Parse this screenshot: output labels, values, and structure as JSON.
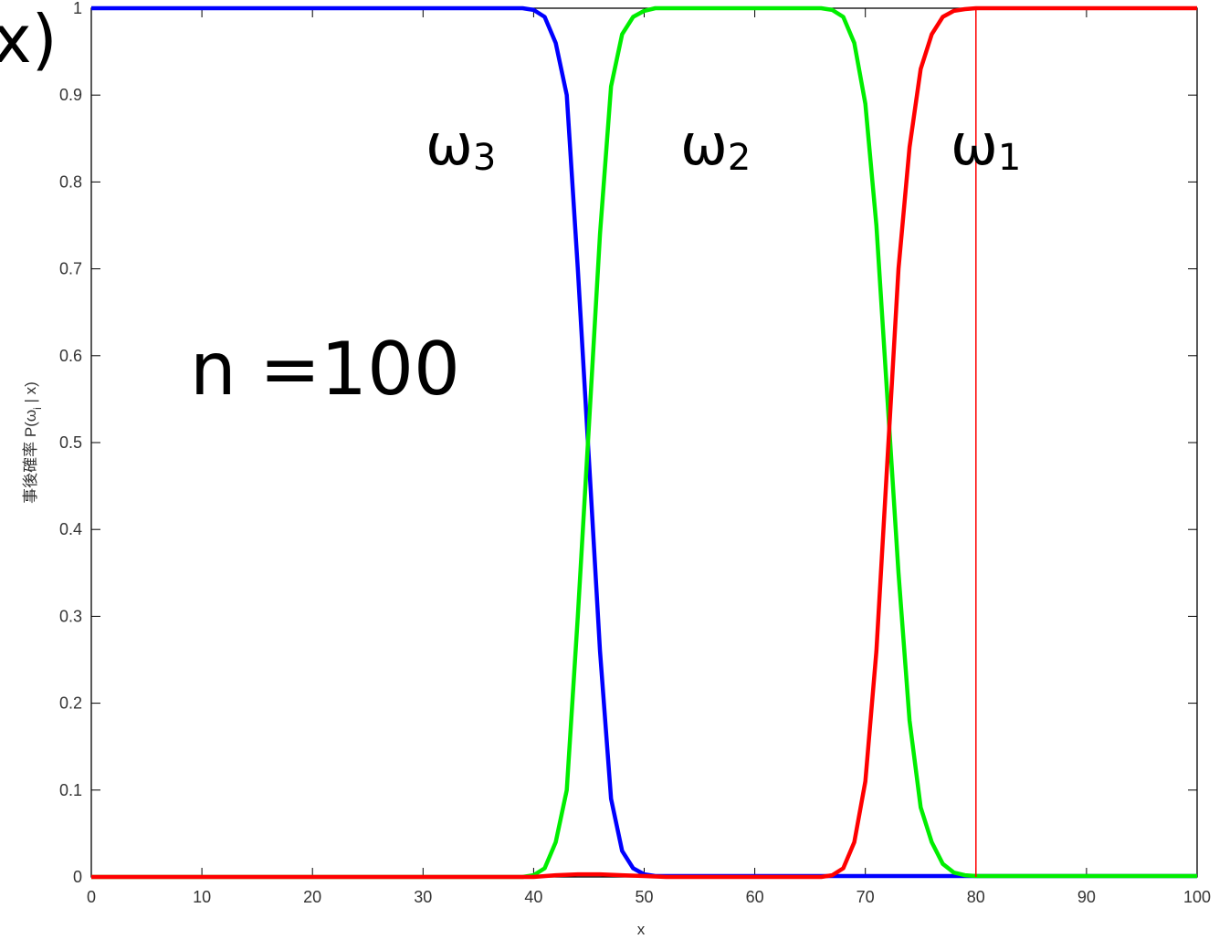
{
  "chart_data": {
    "type": "line",
    "title": "",
    "xlabel": "x",
    "ylabel": "事後確率  P(ω_i | x)",
    "ylabel_parts": {
      "prefix": "事後確率  P(ω",
      "sub": "i",
      "suffix": " | x)"
    },
    "xlim": [
      0,
      100
    ],
    "ylim": [
      0,
      1
    ],
    "xticks": [
      0,
      10,
      20,
      30,
      40,
      50,
      60,
      70,
      80,
      90,
      100
    ],
    "yticks": [
      0,
      0.1,
      0.2,
      0.3,
      0.4,
      0.5,
      0.6,
      0.7,
      0.8,
      0.9,
      1
    ],
    "grid": false,
    "corner_fragment": "x)",
    "annotations": [
      {
        "text": "n =100"
      },
      {
        "base": "ω",
        "sub": "3",
        "x": 34,
        "y": 0.83
      },
      {
        "base": "ω",
        "sub": "2",
        "x": 57,
        "y": 0.83
      },
      {
        "base": "ω",
        "sub": "1",
        "x": 81.5,
        "y": 0.83
      }
    ],
    "vline": {
      "x": 80,
      "color": "#ff0000"
    },
    "series": [
      {
        "color": "#0000ff",
        "x": [
          0,
          38,
          39,
          40,
          41,
          42,
          43,
          44,
          45,
          46,
          47,
          48,
          49,
          50,
          51,
          100
        ],
        "y": [
          1,
          1,
          1,
          0.998,
          0.99,
          0.96,
          0.9,
          0.7,
          0.48,
          0.26,
          0.09,
          0.03,
          0.01,
          0.003,
          0.001,
          0.001
        ]
      },
      {
        "color": "#00ee00",
        "x": [
          0,
          39,
          40,
          41,
          42,
          43,
          44,
          45,
          46,
          47,
          48,
          49,
          50,
          51,
          52,
          66,
          67,
          68,
          69,
          70,
          71,
          72,
          73,
          74,
          75,
          76,
          77,
          78,
          79,
          80,
          100
        ],
        "y": [
          0,
          0,
          0.002,
          0.01,
          0.04,
          0.1,
          0.3,
          0.52,
          0.74,
          0.91,
          0.97,
          0.99,
          0.997,
          1,
          1,
          1,
          0.998,
          0.99,
          0.96,
          0.89,
          0.75,
          0.55,
          0.35,
          0.18,
          0.08,
          0.04,
          0.015,
          0.005,
          0.002,
          0.001,
          0.001
        ]
      },
      {
        "color": "#ff0000",
        "x": [
          0,
          40,
          42,
          44,
          46,
          48,
          50,
          52,
          66,
          67,
          68,
          69,
          70,
          71,
          72,
          73,
          74,
          75,
          76,
          77,
          78,
          79,
          80,
          100
        ],
        "y": [
          0,
          0,
          0.002,
          0.003,
          0.003,
          0.002,
          0.001,
          0,
          0,
          0.002,
          0.01,
          0.04,
          0.11,
          0.26,
          0.48,
          0.7,
          0.84,
          0.93,
          0.97,
          0.99,
          0.997,
          0.999,
          1,
          1
        ]
      }
    ]
  }
}
